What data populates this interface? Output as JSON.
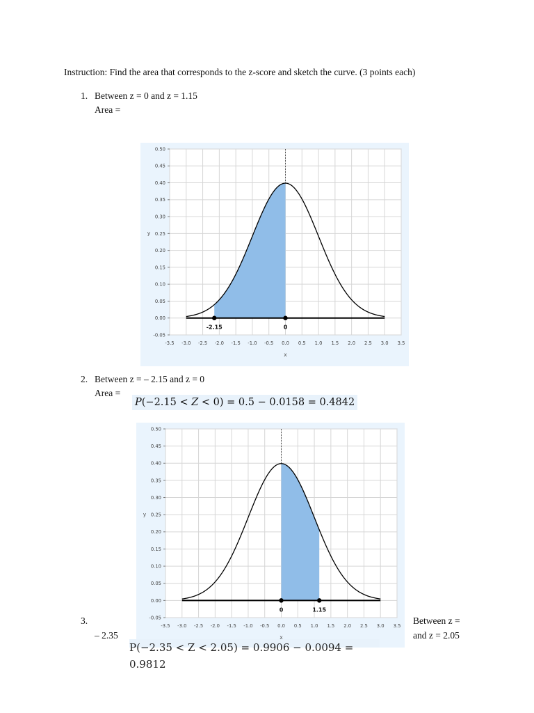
{
  "instruction": "Instruction: Find the area that corresponds to the z-score and sketch the curve. (3 points each)",
  "questions": [
    {
      "number": "1.",
      "text": "Between z = 0 and z = 1.15",
      "area_label": "Area ="
    },
    {
      "number": "2.",
      "text": "Between z = – 2.15 and z = 0",
      "area_label": "Area =",
      "answer": {
        "p": "P",
        "open": "(−2.15 < ",
        "z": "Z",
        "close": " < 0) = 0.5 − 0.0158 = 0.4842"
      }
    },
    {
      "number": "3.",
      "text_right": "Between  z  =",
      "text_left": "–  2.35",
      "text_right2": "and z = 2.05"
    }
  ],
  "cut_text": "P(−2.35 < Z < 2.05) = 0.9906 − 0.0094 = 0.9812",
  "colors": {
    "shade": "#90bde8",
    "panel": "#eaf4fd",
    "grid": "#d6d6d6",
    "curve": "#000000"
  },
  "chart_data": [
    {
      "type": "area",
      "description_visible": "standard normal density curve with shaded region",
      "xlabel": "x",
      "ylabel": "y",
      "xlim": [
        -3.5,
        3.5
      ],
      "ylim": [
        -0.05,
        0.5
      ],
      "x_ticks": [
        "-3.5",
        "-3.0",
        "-2.5",
        "-2.0",
        "-1.5",
        "-1.0",
        "-0.5",
        "0.0",
        "0.5",
        "1.0",
        "1.5",
        "2.0",
        "2.5",
        "3.0",
        "3.5"
      ],
      "y_ticks": [
        "0.50",
        "0.45",
        "0.40",
        "0.35",
        "0.30",
        "0.25",
        "0.20",
        "0.15",
        "0.10",
        "0.05",
        "0.00",
        "-0.05"
      ],
      "curve_domain": [
        -3,
        3
      ],
      "shaded_range": [
        -2.15,
        0
      ],
      "points": [
        {
          "x": -2.15,
          "label": "-2.15"
        },
        {
          "x": 0,
          "label": "0"
        }
      ],
      "dashed_line_x": 0,
      "grid": true
    },
    {
      "type": "area",
      "xlabel": "x",
      "ylabel": "y",
      "xlim": [
        -3.5,
        3.5
      ],
      "ylim": [
        -0.05,
        0.5
      ],
      "x_ticks": [
        "-3.5",
        "-3.0",
        "-2.5",
        "-2.0",
        "-1.5",
        "-1.0",
        "-0.5",
        "0.0",
        "0.5",
        "1.0",
        "1.5",
        "2.0",
        "2.5",
        "3.0",
        "3.5"
      ],
      "y_ticks": [
        "0.50",
        "0.45",
        "0.40",
        "0.35",
        "0.30",
        "0.25",
        "0.20",
        "0.15",
        "0.10",
        "0.05",
        "0.00",
        "-0.05"
      ],
      "curve_domain": [
        -3,
        3
      ],
      "shaded_range": [
        0,
        1.15
      ],
      "points": [
        {
          "x": 0,
          "label": "0"
        },
        {
          "x": 1.15,
          "label": "1.15"
        }
      ],
      "dashed_line_x": 0,
      "grid": true
    }
  ]
}
